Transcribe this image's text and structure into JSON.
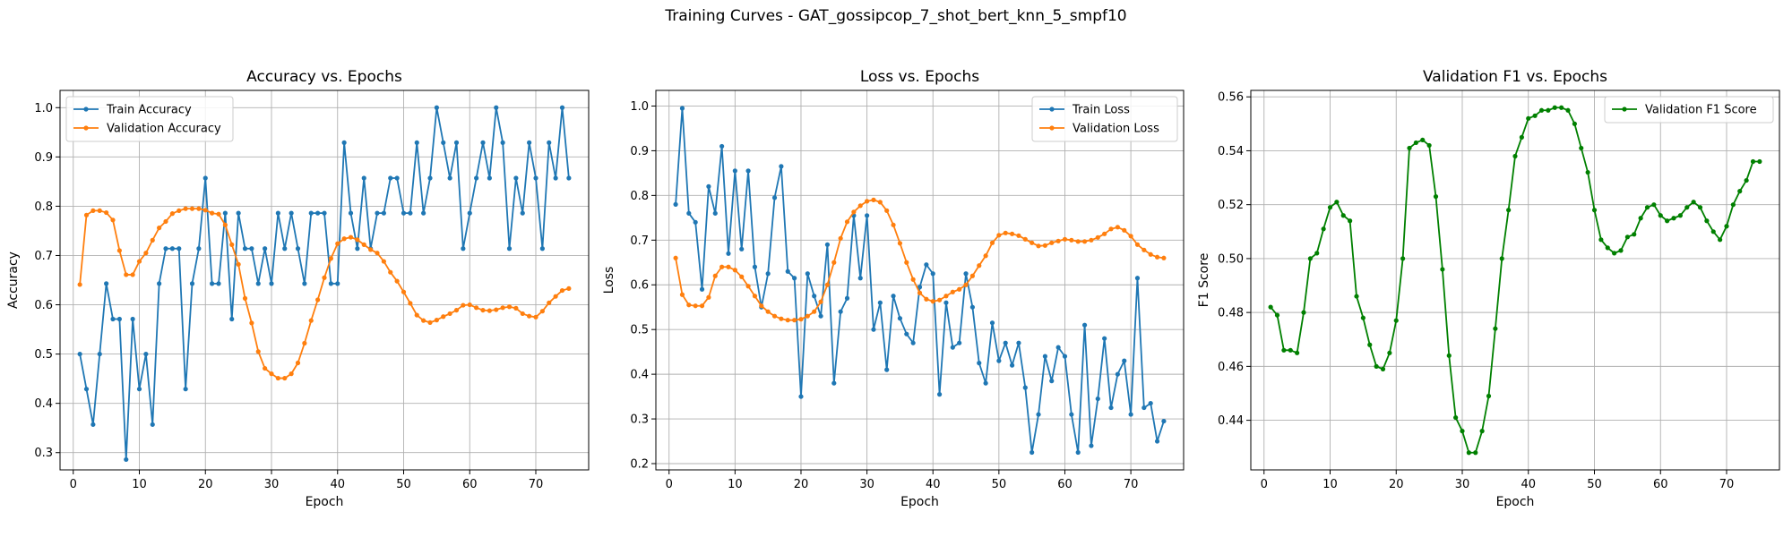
{
  "figure": {
    "title": "Training Curves - GAT_gossipcop_7_shot_bert_knn_5_smpf10"
  },
  "chart_data": [
    {
      "type": "line",
      "title": "Accuracy vs. Epochs",
      "xlabel": "Epoch",
      "ylabel": "Accuracy",
      "xlim": [
        -2,
        78
      ],
      "ylim": [
        0.265,
        1.035
      ],
      "xticks": [
        0,
        10,
        20,
        30,
        40,
        50,
        60,
        70
      ],
      "yticks": [
        0.3,
        0.4,
        0.5,
        0.6,
        0.7,
        0.8,
        0.9,
        1.0
      ],
      "ytick_labels": [
        "0.3",
        "0.4",
        "0.5",
        "0.6",
        "0.7",
        "0.8",
        "0.9",
        "1.0"
      ],
      "grid": true,
      "legend": "top-left",
      "series": [
        {
          "name": "Train Accuracy",
          "color": "#1f77b4",
          "values": [
            0.5,
            0.429,
            0.357,
            0.5,
            0.643,
            0.571,
            0.571,
            0.286,
            0.571,
            0.429,
            0.5,
            0.357,
            0.643,
            0.714,
            0.714,
            0.714,
            0.429,
            0.643,
            0.714,
            0.857,
            0.643,
            0.643,
            0.786,
            0.571,
            0.786,
            0.714,
            0.714,
            0.643,
            0.714,
            0.643,
            0.786,
            0.714,
            0.786,
            0.714,
            0.643,
            0.786,
            0.786,
            0.786,
            0.643,
            0.643,
            0.929,
            0.786,
            0.714,
            0.857,
            0.714,
            0.786,
            0.786,
            0.857,
            0.857,
            0.786,
            0.786,
            0.929,
            0.786,
            0.857,
            1.0,
            0.929,
            0.857,
            0.929,
            0.714,
            0.786,
            0.857,
            0.929,
            0.857,
            1.0,
            0.929,
            0.714,
            0.857,
            0.786,
            0.929,
            0.857,
            0.714,
            0.929,
            0.857,
            1.0,
            0.857
          ]
        },
        {
          "name": "Validation Accuracy",
          "color": "#ff7f0e",
          "values": [
            0.641,
            0.782,
            0.791,
            0.791,
            0.787,
            0.772,
            0.71,
            0.661,
            0.661,
            0.688,
            0.705,
            0.731,
            0.756,
            0.769,
            0.785,
            0.791,
            0.795,
            0.795,
            0.795,
            0.792,
            0.786,
            0.784,
            0.762,
            0.722,
            0.682,
            0.613,
            0.563,
            0.505,
            0.471,
            0.46,
            0.451,
            0.451,
            0.46,
            0.482,
            0.522,
            0.568,
            0.61,
            0.655,
            0.694,
            0.724,
            0.734,
            0.737,
            0.732,
            0.722,
            0.712,
            0.705,
            0.688,
            0.666,
            0.648,
            0.626,
            0.603,
            0.579,
            0.568,
            0.564,
            0.569,
            0.576,
            0.582,
            0.589,
            0.599,
            0.6,
            0.594,
            0.589,
            0.588,
            0.59,
            0.594,
            0.596,
            0.593,
            0.582,
            0.577,
            0.575,
            0.587,
            0.604,
            0.617,
            0.629,
            0.633
          ]
        }
      ]
    },
    {
      "type": "line",
      "title": "Loss vs. Epochs",
      "xlabel": "Epoch",
      "ylabel": "Loss",
      "xlim": [
        -2,
        78
      ],
      "ylim": [
        0.186,
        1.035
      ],
      "xticks": [
        0,
        10,
        20,
        30,
        40,
        50,
        60,
        70
      ],
      "yticks": [
        0.2,
        0.3,
        0.4,
        0.5,
        0.6,
        0.7,
        0.8,
        0.9,
        1.0
      ],
      "ytick_labels": [
        "0.2",
        "0.3",
        "0.4",
        "0.5",
        "0.6",
        "0.7",
        "0.8",
        "0.9",
        "1.0"
      ],
      "grid": true,
      "legend": "top-right",
      "series": [
        {
          "name": "Train Loss",
          "color": "#1f77b4",
          "values": [
            0.78,
            0.995,
            0.76,
            0.74,
            0.59,
            0.82,
            0.76,
            0.91,
            0.67,
            0.855,
            0.68,
            0.855,
            0.64,
            0.55,
            0.625,
            0.795,
            0.865,
            0.63,
            0.615,
            0.35,
            0.625,
            0.575,
            0.53,
            0.69,
            0.38,
            0.54,
            0.57,
            0.755,
            0.615,
            0.755,
            0.5,
            0.56,
            0.41,
            0.575,
            0.525,
            0.49,
            0.47,
            0.595,
            0.645,
            0.625,
            0.355,
            0.56,
            0.46,
            0.47,
            0.625,
            0.55,
            0.425,
            0.38,
            0.515,
            0.43,
            0.47,
            0.42,
            0.47,
            0.37,
            0.225,
            0.31,
            0.44,
            0.385,
            0.46,
            0.44,
            0.31,
            0.225,
            0.51,
            0.24,
            0.345,
            0.48,
            0.325,
            0.4,
            0.43,
            0.31,
            0.615,
            0.325,
            0.335,
            0.25,
            0.295
          ]
        },
        {
          "name": "Validation Loss",
          "color": "#ff7f0e",
          "values": [
            0.66,
            0.578,
            0.555,
            0.553,
            0.553,
            0.572,
            0.62,
            0.64,
            0.64,
            0.633,
            0.618,
            0.597,
            0.575,
            0.553,
            0.54,
            0.53,
            0.524,
            0.521,
            0.521,
            0.523,
            0.53,
            0.54,
            0.562,
            0.6,
            0.65,
            0.704,
            0.741,
            0.763,
            0.777,
            0.787,
            0.79,
            0.785,
            0.766,
            0.734,
            0.693,
            0.65,
            0.612,
            0.582,
            0.568,
            0.563,
            0.566,
            0.575,
            0.584,
            0.59,
            0.6,
            0.62,
            0.643,
            0.665,
            0.694,
            0.711,
            0.716,
            0.714,
            0.71,
            0.702,
            0.694,
            0.687,
            0.688,
            0.694,
            0.698,
            0.702,
            0.7,
            0.697,
            0.697,
            0.7,
            0.706,
            0.714,
            0.725,
            0.729,
            0.722,
            0.709,
            0.69,
            0.678,
            0.668,
            0.662,
            0.66
          ]
        }
      ]
    },
    {
      "type": "line",
      "title": "Validation F1 vs. Epochs",
      "xlabel": "Epoch",
      "ylabel": "F1 Score",
      "xlim": [
        -2,
        78
      ],
      "ylim": [
        0.4216,
        0.5624
      ],
      "xticks": [
        0,
        10,
        20,
        30,
        40,
        50,
        60,
        70
      ],
      "yticks": [
        0.44,
        0.46,
        0.48,
        0.5,
        0.52,
        0.54,
        0.56
      ],
      "ytick_labels": [
        "0.44",
        "0.46",
        "0.48",
        "0.50",
        "0.52",
        "0.54",
        "0.56"
      ],
      "grid": true,
      "legend": "top-right",
      "series": [
        {
          "name": "Validation F1 Score",
          "color": "#008000",
          "values": [
            0.482,
            0.479,
            0.466,
            0.466,
            0.465,
            0.48,
            0.5,
            0.502,
            0.511,
            0.519,
            0.521,
            0.516,
            0.514,
            0.486,
            0.478,
            0.468,
            0.46,
            0.459,
            0.465,
            0.477,
            0.5,
            0.541,
            0.543,
            0.544,
            0.542,
            0.523,
            0.496,
            0.464,
            0.441,
            0.436,
            0.428,
            0.428,
            0.436,
            0.449,
            0.474,
            0.5,
            0.518,
            0.538,
            0.545,
            0.552,
            0.553,
            0.555,
            0.555,
            0.556,
            0.556,
            0.555,
            0.55,
            0.541,
            0.532,
            0.518,
            0.507,
            0.504,
            0.502,
            0.503,
            0.508,
            0.509,
            0.515,
            0.519,
            0.52,
            0.516,
            0.514,
            0.515,
            0.516,
            0.519,
            0.521,
            0.519,
            0.514,
            0.51,
            0.507,
            0.512,
            0.52,
            0.525,
            0.529,
            0.536,
            0.536
          ]
        }
      ]
    }
  ]
}
